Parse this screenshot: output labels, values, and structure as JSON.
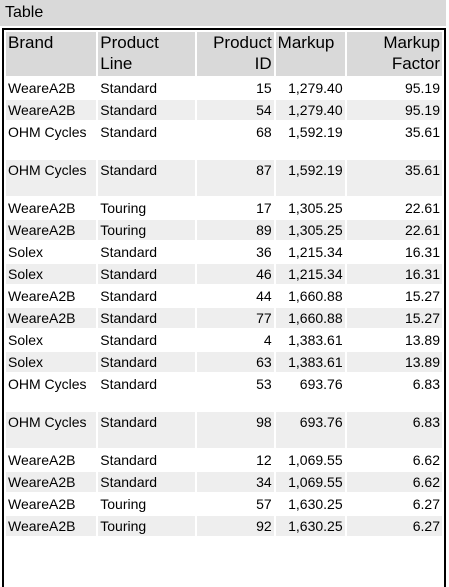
{
  "panel": {
    "title": "Table"
  },
  "columns": [
    {
      "label": "Brand",
      "align": "left"
    },
    {
      "label": "Product Line",
      "align": "left"
    },
    {
      "label": "Product ID",
      "align": "right"
    },
    {
      "label": "Markup",
      "align": "left"
    },
    {
      "label": "Markup Factor",
      "align": "right"
    }
  ],
  "rows": [
    {
      "brand": "WeareA2B",
      "line": "Standard",
      "id": "15",
      "markup": "1,279.40",
      "factor": "95.19"
    },
    {
      "brand": "WeareA2B",
      "line": "Standard",
      "id": "54",
      "markup": "1,279.40",
      "factor": "95.19"
    },
    {
      "brand": "OHM Cycles",
      "line": "Standard",
      "id": "68",
      "markup": "1,592.19",
      "factor": "35.61"
    },
    {
      "brand": "OHM Cycles",
      "line": "Standard",
      "id": "87",
      "markup": "1,592.19",
      "factor": "35.61"
    },
    {
      "brand": "WeareA2B",
      "line": "Touring",
      "id": "17",
      "markup": "1,305.25",
      "factor": "22.61"
    },
    {
      "brand": "WeareA2B",
      "line": "Touring",
      "id": "89",
      "markup": "1,305.25",
      "factor": "22.61"
    },
    {
      "brand": "Solex",
      "line": "Standard",
      "id": "36",
      "markup": "1,215.34",
      "factor": "16.31"
    },
    {
      "brand": "Solex",
      "line": "Standard",
      "id": "46",
      "markup": "1,215.34",
      "factor": "16.31"
    },
    {
      "brand": "WeareA2B",
      "line": "Standard",
      "id": "44",
      "markup": "1,660.88",
      "factor": "15.27"
    },
    {
      "brand": "WeareA2B",
      "line": "Standard",
      "id": "77",
      "markup": "1,660.88",
      "factor": "15.27"
    },
    {
      "brand": "Solex",
      "line": "Standard",
      "id": "4",
      "markup": "1,383.61",
      "factor": "13.89"
    },
    {
      "brand": "Solex",
      "line": "Standard",
      "id": "63",
      "markup": "1,383.61",
      "factor": "13.89"
    },
    {
      "brand": "OHM Cycles",
      "line": "Standard",
      "id": "53",
      "markup": "693.76",
      "factor": "6.83"
    },
    {
      "brand": "OHM Cycles",
      "line": "Standard",
      "id": "98",
      "markup": "693.76",
      "factor": "6.83"
    },
    {
      "brand": "WeareA2B",
      "line": "Standard",
      "id": "12",
      "markup": "1,069.55",
      "factor": "6.62"
    },
    {
      "brand": "WeareA2B",
      "line": "Standard",
      "id": "34",
      "markup": "1,069.55",
      "factor": "6.62"
    },
    {
      "brand": "WeareA2B",
      "line": "Touring",
      "id": "57",
      "markup": "1,630.25",
      "factor": "6.27"
    },
    {
      "brand": "WeareA2B",
      "line": "Touring",
      "id": "92",
      "markup": "1,630.25",
      "factor": "6.27"
    }
  ]
}
